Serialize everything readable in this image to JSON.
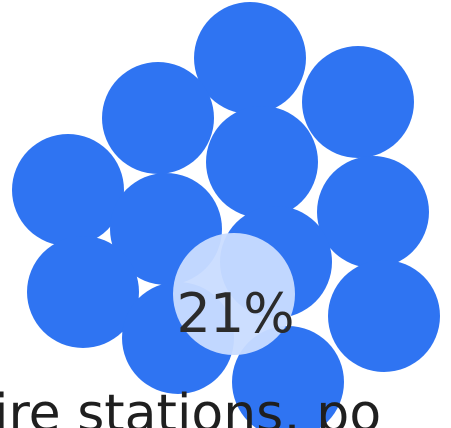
{
  "percentage_label": "21%",
  "caption": "ire stations, po",
  "colors": {
    "circle": "#2f74f2",
    "highlight": "#c9dcff",
    "text": "#222222"
  }
}
